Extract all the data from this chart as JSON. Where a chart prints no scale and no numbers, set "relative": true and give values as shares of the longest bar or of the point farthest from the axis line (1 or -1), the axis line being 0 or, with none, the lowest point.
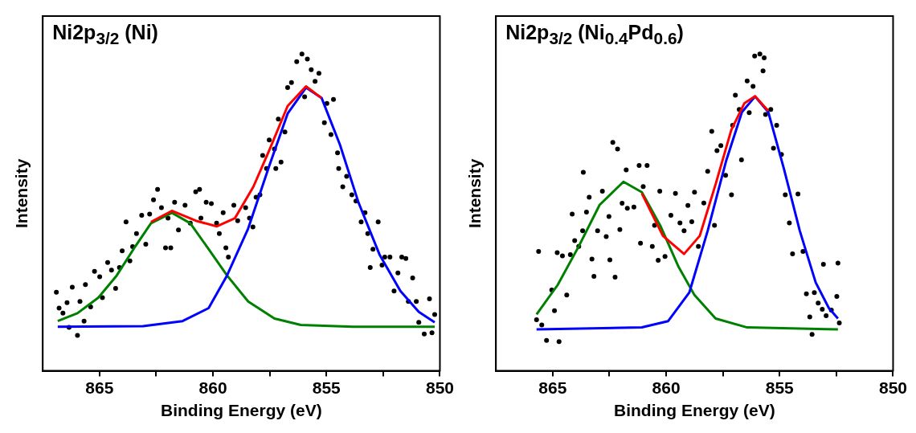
{
  "chart_data": [
    {
      "type": "scatter",
      "title": "Ni2p$_{3/2}$ (Ni)",
      "xlabel": "Binding Energy (eV)",
      "ylabel": "Intensity",
      "relative": true,
      "xlim": [
        867.5,
        850
      ],
      "xticks": [
        865,
        {
          "value": 862.5,
          "label": null
        },
        860,
        {
          "value": 857.5,
          "label": null
        },
        855,
        {
          "value": 852.5,
          "label": null
        },
        850
      ],
      "series": [
        {
          "marker": "circle",
          "color": "#000000",
          "x": [
            866.9,
            866.78,
            866.61,
            866.43,
            866.34,
            866.2,
            865.97,
            865.86,
            865.68,
            865.62,
            865.39,
            865.22,
            864.99,
            864.87,
            864.64,
            864.47,
            864.29,
            864.12,
            864.0,
            863.83,
            863.66,
            863.54,
            863.37,
            863.14,
            862.96,
            862.79,
            862.62,
            862.44,
            862.27,
            862.09,
            861.98,
            861.86,
            861.69,
            861.52,
            861.23,
            861.0,
            860.76,
            860.59,
            860.53,
            860.3,
            860.07,
            859.84,
            859.72,
            859.55,
            859.43,
            859.32,
            859.08,
            858.91,
            858.56,
            858.39,
            858.24,
            858.1,
            857.93,
            857.81,
            857.64,
            857.52,
            857.29,
            857.23,
            857.12,
            857.0,
            856.83,
            856.71,
            856.54,
            856.31,
            856.08,
            855.96,
            855.84,
            855.67,
            855.5,
            855.33,
            855.09,
            854.98,
            854.8,
            854.69,
            854.51,
            854.46,
            854.28,
            854.11,
            853.88,
            853.7,
            853.47,
            853.3,
            853.18,
            853.07,
            852.95,
            852.72,
            852.55,
            852.43,
            852.2,
            852.02,
            851.85,
            851.68,
            851.5,
            851.39,
            851.2,
            851.04,
            850.93,
            850.69,
            850.46,
            850.35,
            850.23
          ],
          "values": [
            0.248,
            0.198,
            0.182,
            0.215,
            0.137,
            0.264,
            0.112,
            0.219,
            0.157,
            0.272,
            0.202,
            0.314,
            0.297,
            0.231,
            0.342,
            0.318,
            0.26,
            0.326,
            0.379,
            0.47,
            0.347,
            0.392,
            0.433,
            0.491,
            0.4,
            0.495,
            0.54,
            0.573,
            0.515,
            0.388,
            0.482,
            0.388,
            0.532,
            0.445,
            0.523,
            0.466,
            0.565,
            0.573,
            0.482,
            0.532,
            0.528,
            0.466,
            0.433,
            0.499,
            0.388,
            0.359,
            0.523,
            0.474,
            0.515,
            0.482,
            0.454,
            0.548,
            0.556,
            0.68,
            0.639,
            0.729,
            0.7,
            0.639,
            0.795,
            0.659,
            0.754,
            0.894,
            0.91,
            0.976,
            1,
            0.865,
            0.984,
            0.951,
            0.914,
            0.939,
            0.783,
            0.844,
            0.746,
            0.857,
            0.688,
            0.639,
            0.581,
            0.614,
            0.556,
            0.536,
            0.47,
            0.499,
            0.433,
            0.326,
            0.384,
            0.47,
            0.334,
            0.359,
            0.359,
            0.252,
            0.309,
            0.359,
            0.355,
            0.219,
            0.293,
            0.219,
            0.153,
            0.116,
            0.227,
            0.12,
            0.178
          ]
        },
        {
          "type": "line",
          "color": "#ff0000",
          "x": [
            862.73,
            861.81,
            860.76,
            859.84,
            859.03,
            858.22,
            857.52,
            856.71,
            855.9,
            855.21
          ],
          "values": [
            0.47,
            0.505,
            0.474,
            0.456,
            0.482,
            0.581,
            0.696,
            0.836,
            0.898,
            0.861
          ]
        },
        {
          "type": "line",
          "color": "#0000ff",
          "x": [
            866.84,
            863.08,
            861.34,
            860.19,
            859.38,
            858.45,
            857.52,
            856.71,
            855.9,
            855.21,
            854.4,
            853.59,
            852.66,
            851.74,
            850.93,
            850.23
          ],
          "values": [
            0.139,
            0.141,
            0.157,
            0.198,
            0.301,
            0.449,
            0.647,
            0.812,
            0.894,
            0.861,
            0.713,
            0.532,
            0.367,
            0.252,
            0.186,
            0.153
          ]
        },
        {
          "type": "line",
          "color": "#008000",
          "x": [
            866.84,
            865.97,
            865.05,
            864.24,
            863.43,
            862.73,
            861.81,
            861.0,
            860.19,
            859.38,
            858.45,
            857.29,
            856.13,
            853.82,
            850.23
          ],
          "values": [
            0.157,
            0.182,
            0.231,
            0.301,
            0.392,
            0.466,
            0.499,
            0.466,
            0.384,
            0.301,
            0.219,
            0.165,
            0.145,
            0.139,
            0.139
          ]
        }
      ]
    },
    {
      "type": "scatter",
      "title": "Ni2p$_{3/2}$ (Ni$_{0.4}$Pd$_{0.6}$)",
      "xlabel": "Binding Energy (eV)",
      "ylabel": "Intensity",
      "relative": true,
      "xlim": [
        867.5,
        850
      ],
      "xticks": [
        865,
        {
          "value": 862.5,
          "label": null
        },
        860,
        {
          "value": 857.5,
          "label": null
        },
        855,
        {
          "value": 852.5,
          "label": null
        },
        850
      ],
      "series": [
        {
          "marker": "circle",
          "color": "#000000",
          "x": [
            865.71,
            865.62,
            865.48,
            865.27,
            865.04,
            864.92,
            864.8,
            864.72,
            864.57,
            864.38,
            864.22,
            864.14,
            864.03,
            863.85,
            863.68,
            863.65,
            863.51,
            863.39,
            863.27,
            863.18,
            863.02,
            862.81,
            862.64,
            862.52,
            862.48,
            862.35,
            862.25,
            862.14,
            862.04,
            861.94,
            861.76,
            861.71,
            861.42,
            861.19,
            861.13,
            861.01,
            860.84,
            860.61,
            860.51,
            860.35,
            860.28,
            860.05,
            859.79,
            859.59,
            859.39,
            859.21,
            859.04,
            858.87,
            858.75,
            858.58,
            858.34,
            858.17,
            857.99,
            857.87,
            857.76,
            857.59,
            857.38,
            857.12,
            857.07,
            856.95,
            856.78,
            856.68,
            856.43,
            856.34,
            856.17,
            856.1,
            855.87,
            855.73,
            855.68,
            855.62,
            855.39,
            855.27,
            855.13,
            854.92,
            854.75,
            854.57,
            854.43,
            854.19,
            853.97,
            853.82,
            853.67,
            853.57,
            853.47,
            853.3,
            853.12,
            853.07,
            852.95,
            852.72,
            852.48,
            852.43,
            852.37
          ],
          "values": [
            0.161,
            0.377,
            0.145,
            0.096,
            0.255,
            0.19,
            0.373,
            0.092,
            0.363,
            0.239,
            0.367,
            0.495,
            0.411,
            0.393,
            0.442,
            0.627,
            0.501,
            0.548,
            0.353,
            0.298,
            0.442,
            0.567,
            0.424,
            0.487,
            0.35,
            0.721,
            0.296,
            0.7,
            0.446,
            0.529,
            0.634,
            0.513,
            0.517,
            0.648,
            0.403,
            0.582,
            0.648,
            0.393,
            0.459,
            0.349,
            0.567,
            0.361,
            0.491,
            0.56,
            0.467,
            0.442,
            0.522,
            0.471,
            0.564,
            0.393,
            0.53,
            0.63,
            0.756,
            0.459,
            0.695,
            0.711,
            0.617,
            0.556,
            0.775,
            0.87,
            0.825,
            0.666,
            0.915,
            0.815,
            0.898,
            0.994,
            1,
            0.947,
            0.988,
            0.809,
            0.825,
            0.703,
            0.775,
            0.683,
            0.556,
            0.467,
            0.369,
            0.558,
            0.377,
            0.243,
            0.17,
            0.115,
            0.247,
            0.214,
            0.194,
            0.336,
            0.174,
            0.192,
            0.235,
            0.34,
            0.151
          ]
        },
        {
          "type": "line",
          "color": "#ff0000",
          "x": [
            861.07,
            860.14,
            859.21,
            858.52,
            857.82,
            857.13,
            856.55,
            856.08,
            855.5
          ],
          "values": [
            0.56,
            0.426,
            0.369,
            0.426,
            0.589,
            0.76,
            0.845,
            0.867,
            0.821
          ]
        },
        {
          "type": "line",
          "color": "#0000ff",
          "x": [
            865.71,
            861.07,
            859.91,
            858.98,
            858.17,
            857.36,
            856.66,
            856.08,
            855.5,
            854.81,
            854.11,
            853.41,
            852.83,
            852.43
          ],
          "values": [
            0.131,
            0.137,
            0.157,
            0.247,
            0.442,
            0.662,
            0.817,
            0.866,
            0.817,
            0.638,
            0.442,
            0.279,
            0.198,
            0.165
          ]
        },
        {
          "type": "line",
          "color": "#008000",
          "x": [
            865.71,
            864.78,
            863.85,
            862.93,
            861.88,
            861.07,
            860.26,
            859.45,
            858.75,
            857.82,
            856.43,
            852.43
          ],
          "values": [
            0.178,
            0.271,
            0.393,
            0.524,
            0.597,
            0.564,
            0.459,
            0.328,
            0.239,
            0.165,
            0.137,
            0.131
          ]
        }
      ]
    }
  ]
}
